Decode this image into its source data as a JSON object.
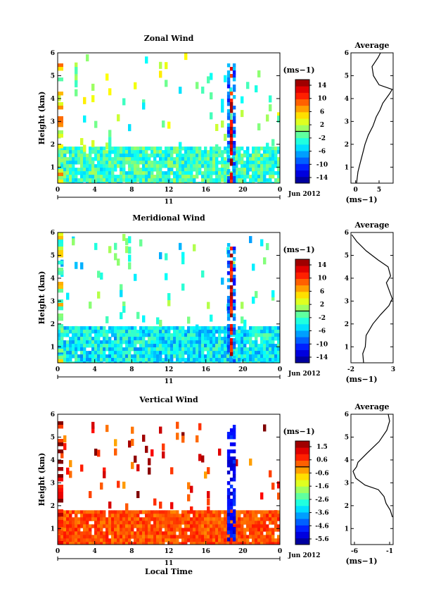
{
  "figure": {
    "date_label": "Jun 2012",
    "day_label": "11",
    "xlabel": "Local Time"
  },
  "chart_data": [
    {
      "type": "heatmap",
      "title": "Zonal Wind",
      "ylabel": "Height (km)",
      "xlabel": "",
      "xlim": [
        0,
        24
      ],
      "ylim": [
        0.3,
        6
      ],
      "xticks": [
        "0",
        "4",
        "8",
        "12",
        "16",
        "20",
        "0"
      ],
      "yticks": [
        "1",
        "2",
        "3",
        "4",
        "5",
        "6"
      ],
      "colorbar": {
        "unit": "(ms−1)",
        "min": -15,
        "max": 15,
        "ticks": [
          "14",
          "10",
          "6",
          "2",
          "-2",
          "-6",
          "-10",
          "-14"
        ]
      },
      "dominant_value": -2,
      "low_layer_top_km": 1.9,
      "profile": {
        "title": "Average",
        "xlabel": "(ms−1)",
        "xlim": [
          -1,
          8
        ],
        "xticks": [
          "0",
          "5"
        ],
        "height_km": [
          0.3,
          0.8,
          1.2,
          1.6,
          2.0,
          2.4,
          2.8,
          3.2,
          3.5,
          3.8,
          4.2,
          4.4,
          4.6,
          5.0,
          5.4,
          5.8,
          6.0
        ],
        "value": [
          0.2,
          0.5,
          1.0,
          1.5,
          2.0,
          2.7,
          3.7,
          4.4,
          5.2,
          5.8,
          7.2,
          7.8,
          5.0,
          3.8,
          3.5,
          4.8,
          5.3
        ]
      }
    },
    {
      "type": "heatmap",
      "title": "Meridional Wind",
      "ylabel": "Height (km)",
      "xlabel": "",
      "xlim": [
        0,
        24
      ],
      "ylim": [
        0.3,
        6
      ],
      "xticks": [
        "0",
        "4",
        "8",
        "12",
        "16",
        "20",
        "0"
      ],
      "yticks": [
        "1",
        "2",
        "3",
        "4",
        "5",
        "6"
      ],
      "colorbar": {
        "unit": "(ms−1)",
        "min": -15,
        "max": 15,
        "ticks": [
          "14",
          "10",
          "6",
          "2",
          "-2",
          "-6",
          "-10",
          "-14"
        ]
      },
      "dominant_value": -4,
      "low_layer_top_km": 1.9,
      "profile": {
        "title": "Average",
        "xlabel": "(ms−1)",
        "xlim": [
          -2,
          3
        ],
        "xticks": [
          "-2",
          "3"
        ],
        "height_km": [
          0.3,
          0.7,
          1.0,
          1.5,
          2.0,
          2.4,
          2.8,
          3.1,
          3.4,
          3.8,
          4.1,
          4.5,
          4.8,
          5.2,
          5.6,
          5.9
        ],
        "value": [
          -0.5,
          -0.6,
          -0.3,
          -0.2,
          0.6,
          1.5,
          2.5,
          2.9,
          2.6,
          2.2,
          2.7,
          2.4,
          1.2,
          -0.2,
          -1.3,
          -1.9
        ]
      }
    },
    {
      "type": "heatmap",
      "title": "Vertical Wind",
      "ylabel": "Height (km)",
      "xlabel": "Local Time",
      "xlim": [
        0,
        24
      ],
      "ylim": [
        0.3,
        6
      ],
      "xticks": [
        "0",
        "4",
        "8",
        "12",
        "16",
        "20",
        "0"
      ],
      "yticks": [
        "1",
        "2",
        "3",
        "4",
        "5",
        "6"
      ],
      "colorbar": {
        "unit": "(ms−1)",
        "min": -6,
        "max": 2,
        "ticks": [
          "1.5",
          "0.6",
          "-0.6",
          "-1.6",
          "-2.6",
          "-3.6",
          "-4.6",
          "-5.6"
        ]
      },
      "dominant_value": 0.4,
      "low_layer_top_km": 1.8,
      "profile": {
        "title": "Average",
        "xlabel": "(ms−1)",
        "xlim": [
          -6.5,
          -0.5
        ],
        "xticks": [
          "-6",
          "-1"
        ],
        "height_km": [
          1.5,
          1.8,
          2.1,
          2.4,
          2.7,
          2.9,
          3.2,
          3.5,
          3.7,
          3.9,
          4.3,
          4.8,
          5.3,
          5.7,
          6.0
        ],
        "value": [
          -0.6,
          -0.9,
          -1.5,
          -1.8,
          -2.6,
          -4.5,
          -5.8,
          -6.2,
          -5.7,
          -5.5,
          -4.2,
          -2.5,
          -1.4,
          -1.0,
          -1.2
        ]
      }
    }
  ]
}
